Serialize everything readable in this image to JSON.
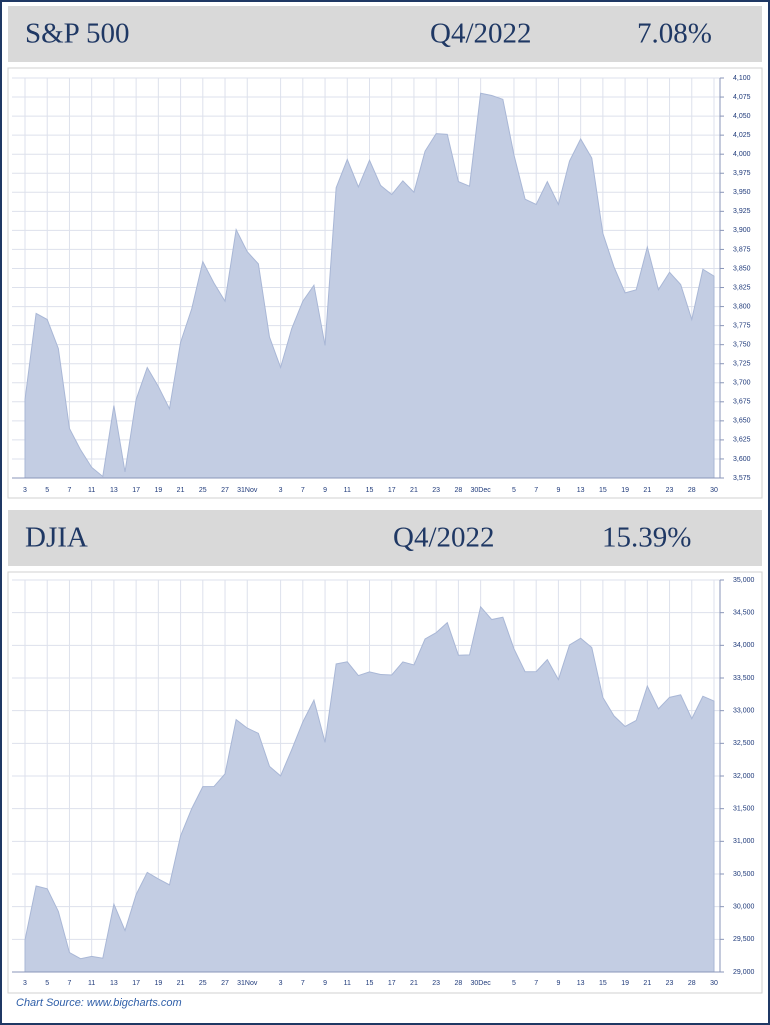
{
  "chart_data": [
    {
      "type": "area",
      "title": "S&P 500",
      "period": "Q4/2022",
      "change": "7.08%",
      "categories": [
        "3",
        null,
        "5",
        null,
        "7",
        null,
        "11",
        null,
        "13",
        null,
        "17",
        null,
        "19",
        null,
        "21",
        null,
        "25",
        null,
        "27",
        null,
        "31Nov",
        null,
        null,
        "3",
        null,
        "7",
        null,
        "9",
        null,
        "11",
        null,
        "15",
        null,
        "17",
        null,
        "21",
        null,
        "23",
        null,
        "28",
        null,
        "30Dec",
        null,
        null,
        "5",
        null,
        "7",
        null,
        "9",
        null,
        "13",
        null,
        "15",
        null,
        "19",
        null,
        "21",
        null,
        "23",
        null,
        "28",
        null,
        "30"
      ],
      "values": [
        3678,
        3791,
        3783,
        3745,
        3640,
        3612,
        3589,
        3577,
        3670,
        3583,
        3678,
        3720,
        3695,
        3666,
        3753,
        3797,
        3859,
        3831,
        3807,
        3901,
        3872,
        3856,
        3760,
        3720,
        3771,
        3807,
        3828,
        3749,
        3956,
        3993,
        3957,
        3992,
        3959,
        3947,
        3965,
        3950,
        4004,
        4027,
        4026,
        3964,
        3958,
        4080,
        4077,
        4072,
        3999,
        3941,
        3934,
        3964,
        3934,
        3991,
        4020,
        3995,
        3896,
        3852,
        3818,
        3822,
        3878,
        3822,
        3845,
        3829,
        3783,
        3849,
        3840
      ],
      "color": "#c3cde3",
      "ylim": [
        3575,
        4100
      ],
      "yticks": [
        {
          "value": 3575,
          "label": "3,575"
        },
        {
          "value": 3600,
          "label": "3,600"
        },
        {
          "value": 3625,
          "label": "3,625"
        },
        {
          "value": 3650,
          "label": "3,650"
        },
        {
          "value": 3675,
          "label": "3,675"
        },
        {
          "value": 3700,
          "label": "3,700"
        },
        {
          "value": 3725,
          "label": "3,725"
        },
        {
          "value": 3750,
          "label": "3,750"
        },
        {
          "value": 3775,
          "label": "3,775"
        },
        {
          "value": 3800,
          "label": "3,800"
        },
        {
          "value": 3825,
          "label": "3,825"
        },
        {
          "value": 3850,
          "label": "3,850"
        },
        {
          "value": 3875,
          "label": "3,875"
        },
        {
          "value": 3900,
          "label": "3,900"
        },
        {
          "value": 3925,
          "label": "3,925"
        },
        {
          "value": 3950,
          "label": "3,950"
        },
        {
          "value": 3975,
          "label": "3,975"
        },
        {
          "value": 4000,
          "label": "4,000"
        },
        {
          "value": 4025,
          "label": "4,025"
        },
        {
          "value": 4050,
          "label": "4,050"
        },
        {
          "value": 4075,
          "label": "4,075"
        },
        {
          "value": 4100,
          "label": "4,100"
        }
      ],
      "grid": true
    },
    {
      "type": "area",
      "title": "DJIA",
      "period": "Q4/2022",
      "change": "15.39%",
      "categories": [
        "3",
        null,
        "5",
        null,
        "7",
        null,
        "11",
        null,
        "13",
        null,
        "17",
        null,
        "19",
        null,
        "21",
        null,
        "25",
        null,
        "27",
        null,
        "31Nov",
        null,
        null,
        "3",
        null,
        "7",
        null,
        "9",
        null,
        "11",
        null,
        "15",
        null,
        "17",
        null,
        "21",
        null,
        "23",
        null,
        "28",
        null,
        "30Dec",
        null,
        null,
        "5",
        null,
        "7",
        null,
        "9",
        null,
        "13",
        null,
        "15",
        null,
        "19",
        null,
        "21",
        null,
        "23",
        null,
        "28",
        null,
        "30"
      ],
      "values": [
        29491,
        30316,
        30274,
        29927,
        29297,
        29203,
        29239,
        29211,
        30039,
        29635,
        30186,
        30524,
        30424,
        30334,
        31083,
        31500,
        31837,
        31839,
        32033,
        32862,
        32733,
        32653,
        32148,
        32001,
        32403,
        32827,
        33161,
        32514,
        33715,
        33748,
        33537,
        33593,
        33554,
        33546,
        33746,
        33700,
        34098,
        34194,
        34347,
        33849,
        33853,
        34590,
        34395,
        34430,
        33947,
        33596,
        33598,
        33781,
        33476,
        34005,
        34109,
        33966,
        33202,
        32920,
        32758,
        32850,
        33376,
        33027,
        33204,
        33242,
        32876,
        33221,
        33147
      ],
      "color": "#c3cde3",
      "ylim": [
        29000,
        35000
      ],
      "yticks": [
        {
          "value": 29000,
          "label": "29,000"
        },
        {
          "value": 29500,
          "label": "29,500"
        },
        {
          "value": 30000,
          "label": "30,000"
        },
        {
          "value": 30500,
          "label": "30,500"
        },
        {
          "value": 31000,
          "label": "31,000"
        },
        {
          "value": 31500,
          "label": "31,500"
        },
        {
          "value": 32000,
          "label": "32,000"
        },
        {
          "value": 32500,
          "label": "32,500"
        },
        {
          "value": 33000,
          "label": "33,000"
        },
        {
          "value": 33500,
          "label": "33,500"
        },
        {
          "value": 34000,
          "label": "34,000"
        },
        {
          "value": 34500,
          "label": "34,500"
        },
        {
          "value": 35000,
          "label": "35,000"
        }
      ],
      "grid": true
    }
  ],
  "source": "Chart Source: www.bigcharts.com"
}
